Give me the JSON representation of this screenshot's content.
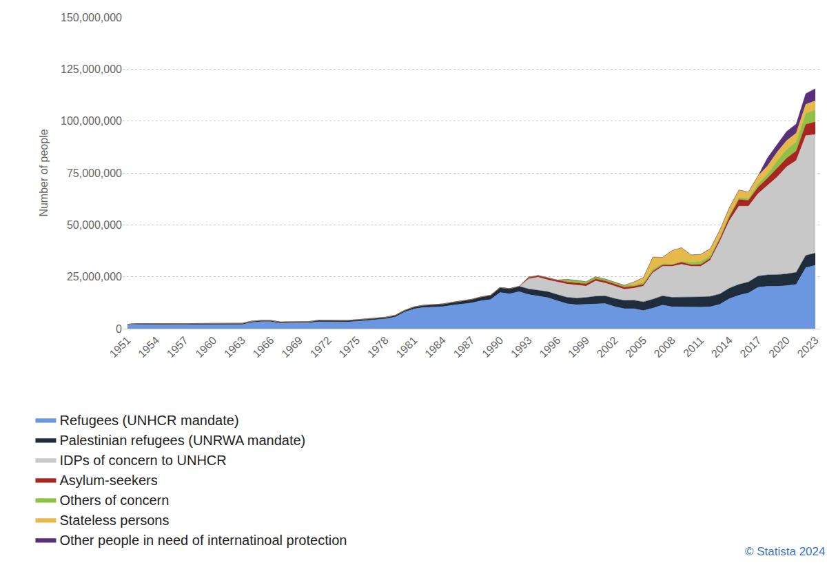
{
  "chart_data": {
    "type": "area",
    "stacked": true,
    "grid": true,
    "legend": "bottom",
    "y_label": "Number of people",
    "annotations": [
      "© Statista 2024"
    ],
    "x": [
      1951,
      1952,
      1953,
      1954,
      1955,
      1956,
      1957,
      1958,
      1959,
      1960,
      1961,
      1962,
      1963,
      1964,
      1965,
      1966,
      1967,
      1968,
      1969,
      1970,
      1971,
      1972,
      1973,
      1974,
      1975,
      1976,
      1977,
      1978,
      1979,
      1980,
      1981,
      1982,
      1983,
      1984,
      1985,
      1986,
      1987,
      1988,
      1989,
      1990,
      1991,
      1992,
      1993,
      1994,
      1995,
      1996,
      1997,
      1998,
      1999,
      2000,
      2001,
      2002,
      2003,
      2004,
      2005,
      2006,
      2007,
      2008,
      2009,
      2010,
      2011,
      2012,
      2013,
      2014,
      2015,
      2016,
      2017,
      2018,
      2019,
      2020,
      2021,
      2022,
      2023
    ],
    "xlim": [
      1950.5,
      2023.5
    ],
    "xticks": [
      1951,
      1954,
      1957,
      1960,
      1963,
      1966,
      1969,
      1972,
      1975,
      1978,
      1981,
      1984,
      1987,
      1990,
      1993,
      1996,
      1999,
      2002,
      2005,
      2008,
      2011,
      2014,
      2017,
      2020,
      2023
    ],
    "ylim": [
      0,
      150000000
    ],
    "yticks": [
      0,
      {
        "value": 25000000,
        "label": "25,000,000"
      },
      {
        "value": 50000000,
        "label": "50,000,000"
      },
      {
        "value": 75000000,
        "label": "75,000,000"
      },
      {
        "value": 100000000,
        "label": "100,000,000"
      },
      {
        "value": 125000000,
        "label": "125,000,000"
      },
      {
        "value": 150000000,
        "label": "150,000,000"
      }
    ],
    "series": [
      {
        "name": "Refugees (UNHCR mandate)",
        "color": "#6b97e0",
        "values": [
          2100000,
          2000000,
          1950000,
          1900000,
          1900000,
          1900000,
          1900000,
          2000000,
          2000000,
          2000000,
          2000000,
          2100000,
          2000000,
          3000000,
          3400000,
          3400000,
          2600000,
          2700000,
          2800000,
          2800000,
          3300000,
          3300000,
          3100000,
          3200000,
          3500000,
          4000000,
          4300000,
          4700000,
          5600000,
          8000000,
          9500000,
          10200000,
          10500000,
          10600000,
          11300000,
          11900000,
          12400000,
          13400000,
          14000000,
          17400000,
          16800000,
          17800000,
          16400000,
          15700000,
          14900000,
          13400000,
          12000000,
          11500000,
          11700000,
          12100000,
          12100000,
          10600000,
          9600000,
          9600000,
          8700000,
          9900000,
          11400000,
          10500000,
          10400000,
          10500000,
          10400000,
          10500000,
          11700000,
          14400000,
          16100000,
          17200000,
          19900000,
          20400000,
          20400000,
          20700000,
          21300000,
          29400000,
          30500000
        ]
      },
      {
        "name": "Palestinian refugees (UNRWA mandate)",
        "color": "#1e2c3c",
        "values": [
          null,
          500000,
          500000,
          500000,
          500000,
          500000,
          500000,
          500000,
          500000,
          500000,
          600000,
          600000,
          600000,
          600000,
          600000,
          600000,
          600000,
          600000,
          600000,
          600000,
          800000,
          800000,
          800000,
          800000,
          800000,
          800000,
          800000,
          800000,
          800000,
          800000,
          1000000,
          1100000,
          1200000,
          1300000,
          1400000,
          1500000,
          1700000,
          1900000,
          2100000,
          2400000,
          2500000,
          2600000,
          2700000,
          2800000,
          2900000,
          3000000,
          3100000,
          3200000,
          3300000,
          3500000,
          3700000,
          3900000,
          4000000,
          4100000,
          4200000,
          4300000,
          4400000,
          4600000,
          4700000,
          4800000,
          4900000,
          5000000,
          5000000,
          5100000,
          5200000,
          5300000,
          5400000,
          5500000,
          5600000,
          5700000,
          5800000,
          5900000,
          5900000
        ]
      },
      {
        "name": "IDPs of concern to UNHCR",
        "color": "#c8c8c8",
        "values": [
          null,
          null,
          null,
          null,
          null,
          null,
          null,
          null,
          null,
          null,
          null,
          null,
          null,
          null,
          null,
          null,
          null,
          null,
          null,
          null,
          null,
          null,
          null,
          null,
          null,
          null,
          null,
          null,
          null,
          null,
          null,
          null,
          null,
          null,
          null,
          null,
          null,
          null,
          null,
          null,
          null,
          null,
          4900000,
          6300000,
          5700000,
          6100000,
          6400000,
          6300000,
          5500000,
          7400000,
          6200000,
          6000000,
          5400000,
          5800000,
          7600000,
          12800000,
          14200000,
          14900000,
          15900000,
          14700000,
          14700000,
          17500000,
          25300000,
          32500000,
          37700000,
          36500000,
          39700000,
          43100000,
          47000000,
          51600000,
          53900000,
          57700000,
          57100000
        ]
      },
      {
        "name": "Asylum-seekers",
        "color": "#a8261f",
        "values": [
          null,
          null,
          null,
          null,
          null,
          null,
          null,
          null,
          null,
          null,
          null,
          null,
          null,
          null,
          null,
          null,
          null,
          null,
          null,
          null,
          null,
          null,
          null,
          null,
          null,
          null,
          null,
          null,
          null,
          null,
          null,
          null,
          null,
          null,
          null,
          null,
          null,
          null,
          null,
          null,
          null,
          null,
          800000,
          800000,
          900000,
          900000,
          1000000,
          1000000,
          1100000,
          1000000,
          1000000,
          1000000,
          1000000,
          900000,
          800000,
          700000,
          700000,
          800000,
          1000000,
          800000,
          900000,
          900000,
          1200000,
          1800000,
          3200000,
          2800000,
          3100000,
          3500000,
          4200000,
          4100000,
          4600000,
          5400000,
          6100000
        ]
      },
      {
        "name": "Others of concern",
        "color": "#8fc146",
        "values": [
          null,
          null,
          null,
          null,
          null,
          null,
          null,
          null,
          null,
          null,
          null,
          null,
          null,
          null,
          null,
          null,
          null,
          null,
          null,
          null,
          null,
          null,
          null,
          null,
          null,
          null,
          null,
          null,
          null,
          null,
          null,
          null,
          null,
          null,
          null,
          null,
          null,
          null,
          null,
          null,
          null,
          null,
          null,
          null,
          null,
          null,
          1200000,
          1300000,
          1000000,
          1000000,
          900000,
          900000,
          900000,
          600000,
          900000,
          1000000,
          600000,
          200000,
          400000,
          1200000,
          1400000,
          1300000,
          800000,
          1000000,
          900000,
          800000,
          1600000,
          2000000,
          3600000,
          4300000,
          4300000,
          5200000,
          5800000
        ]
      },
      {
        "name": "Stateless persons",
        "color": "#e5b94a",
        "values": [
          null,
          null,
          null,
          null,
          null,
          null,
          null,
          null,
          null,
          null,
          null,
          null,
          null,
          null,
          null,
          null,
          null,
          null,
          null,
          null,
          null,
          null,
          null,
          null,
          null,
          null,
          null,
          null,
          null,
          null,
          null,
          null,
          null,
          null,
          null,
          null,
          null,
          null,
          null,
          null,
          null,
          null,
          null,
          null,
          null,
          null,
          null,
          null,
          null,
          null,
          null,
          null,
          null,
          1500000,
          2400000,
          5800000,
          3000000,
          6600000,
          6600000,
          3500000,
          3500000,
          3300000,
          3500000,
          3500000,
          3700000,
          3200000,
          3900000,
          3900000,
          4200000,
          4200000,
          4300000,
          4400000,
          4400000
        ]
      },
      {
        "name": "Other people in need of internatinoal protection",
        "color": "#5a2f79",
        "values": [
          null,
          null,
          null,
          null,
          null,
          null,
          null,
          null,
          null,
          null,
          null,
          null,
          null,
          null,
          null,
          null,
          null,
          null,
          null,
          null,
          null,
          null,
          null,
          null,
          null,
          null,
          null,
          null,
          null,
          null,
          null,
          null,
          null,
          null,
          null,
          null,
          null,
          null,
          null,
          null,
          null,
          null,
          null,
          null,
          null,
          null,
          null,
          null,
          null,
          null,
          null,
          null,
          null,
          null,
          null,
          null,
          null,
          null,
          null,
          null,
          null,
          null,
          null,
          null,
          null,
          null,
          null,
          3900000,
          3600000,
          4400000,
          4400000,
          5200000,
          5800000
        ]
      }
    ]
  }
}
